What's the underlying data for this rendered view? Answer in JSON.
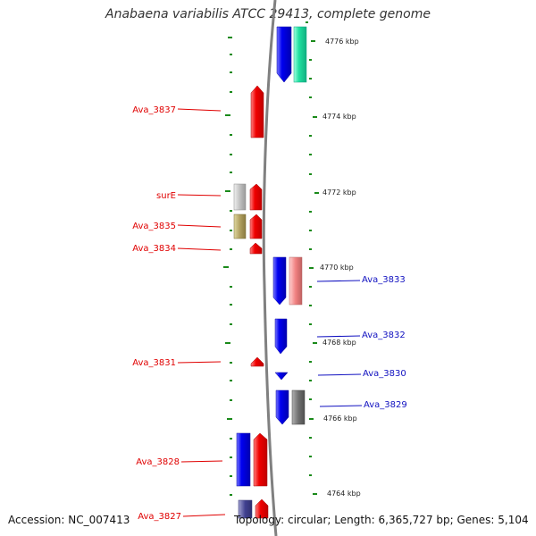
{
  "title": "Anabaena variabilis ATCC 29413, complete genome",
  "footer": {
    "accession": "Accession: NC_007413",
    "topology": "Topology: circular; Length: 6,365,727 bp; Genes: 5,104"
  },
  "colors": {
    "backbone": "#808080",
    "tick": "#1a8a1a",
    "left_label": "#e00000",
    "right_label": "#1010c0"
  },
  "kbp_labels": [
    "4776 kbp",
    "4774 kbp",
    "4772 kbp",
    "4770 kbp",
    "4768 kbp",
    "4766 kbp",
    "4764 kbp"
  ],
  "left_labels": [
    "Ava_3837",
    "surE",
    "Ava_3835",
    "Ava_3834",
    "Ava_3831",
    "Ava_3828",
    "Ava_3827"
  ],
  "right_labels": [
    "Ava_3833",
    "Ava_3832",
    "Ava_3830",
    "Ava_3829"
  ]
}
